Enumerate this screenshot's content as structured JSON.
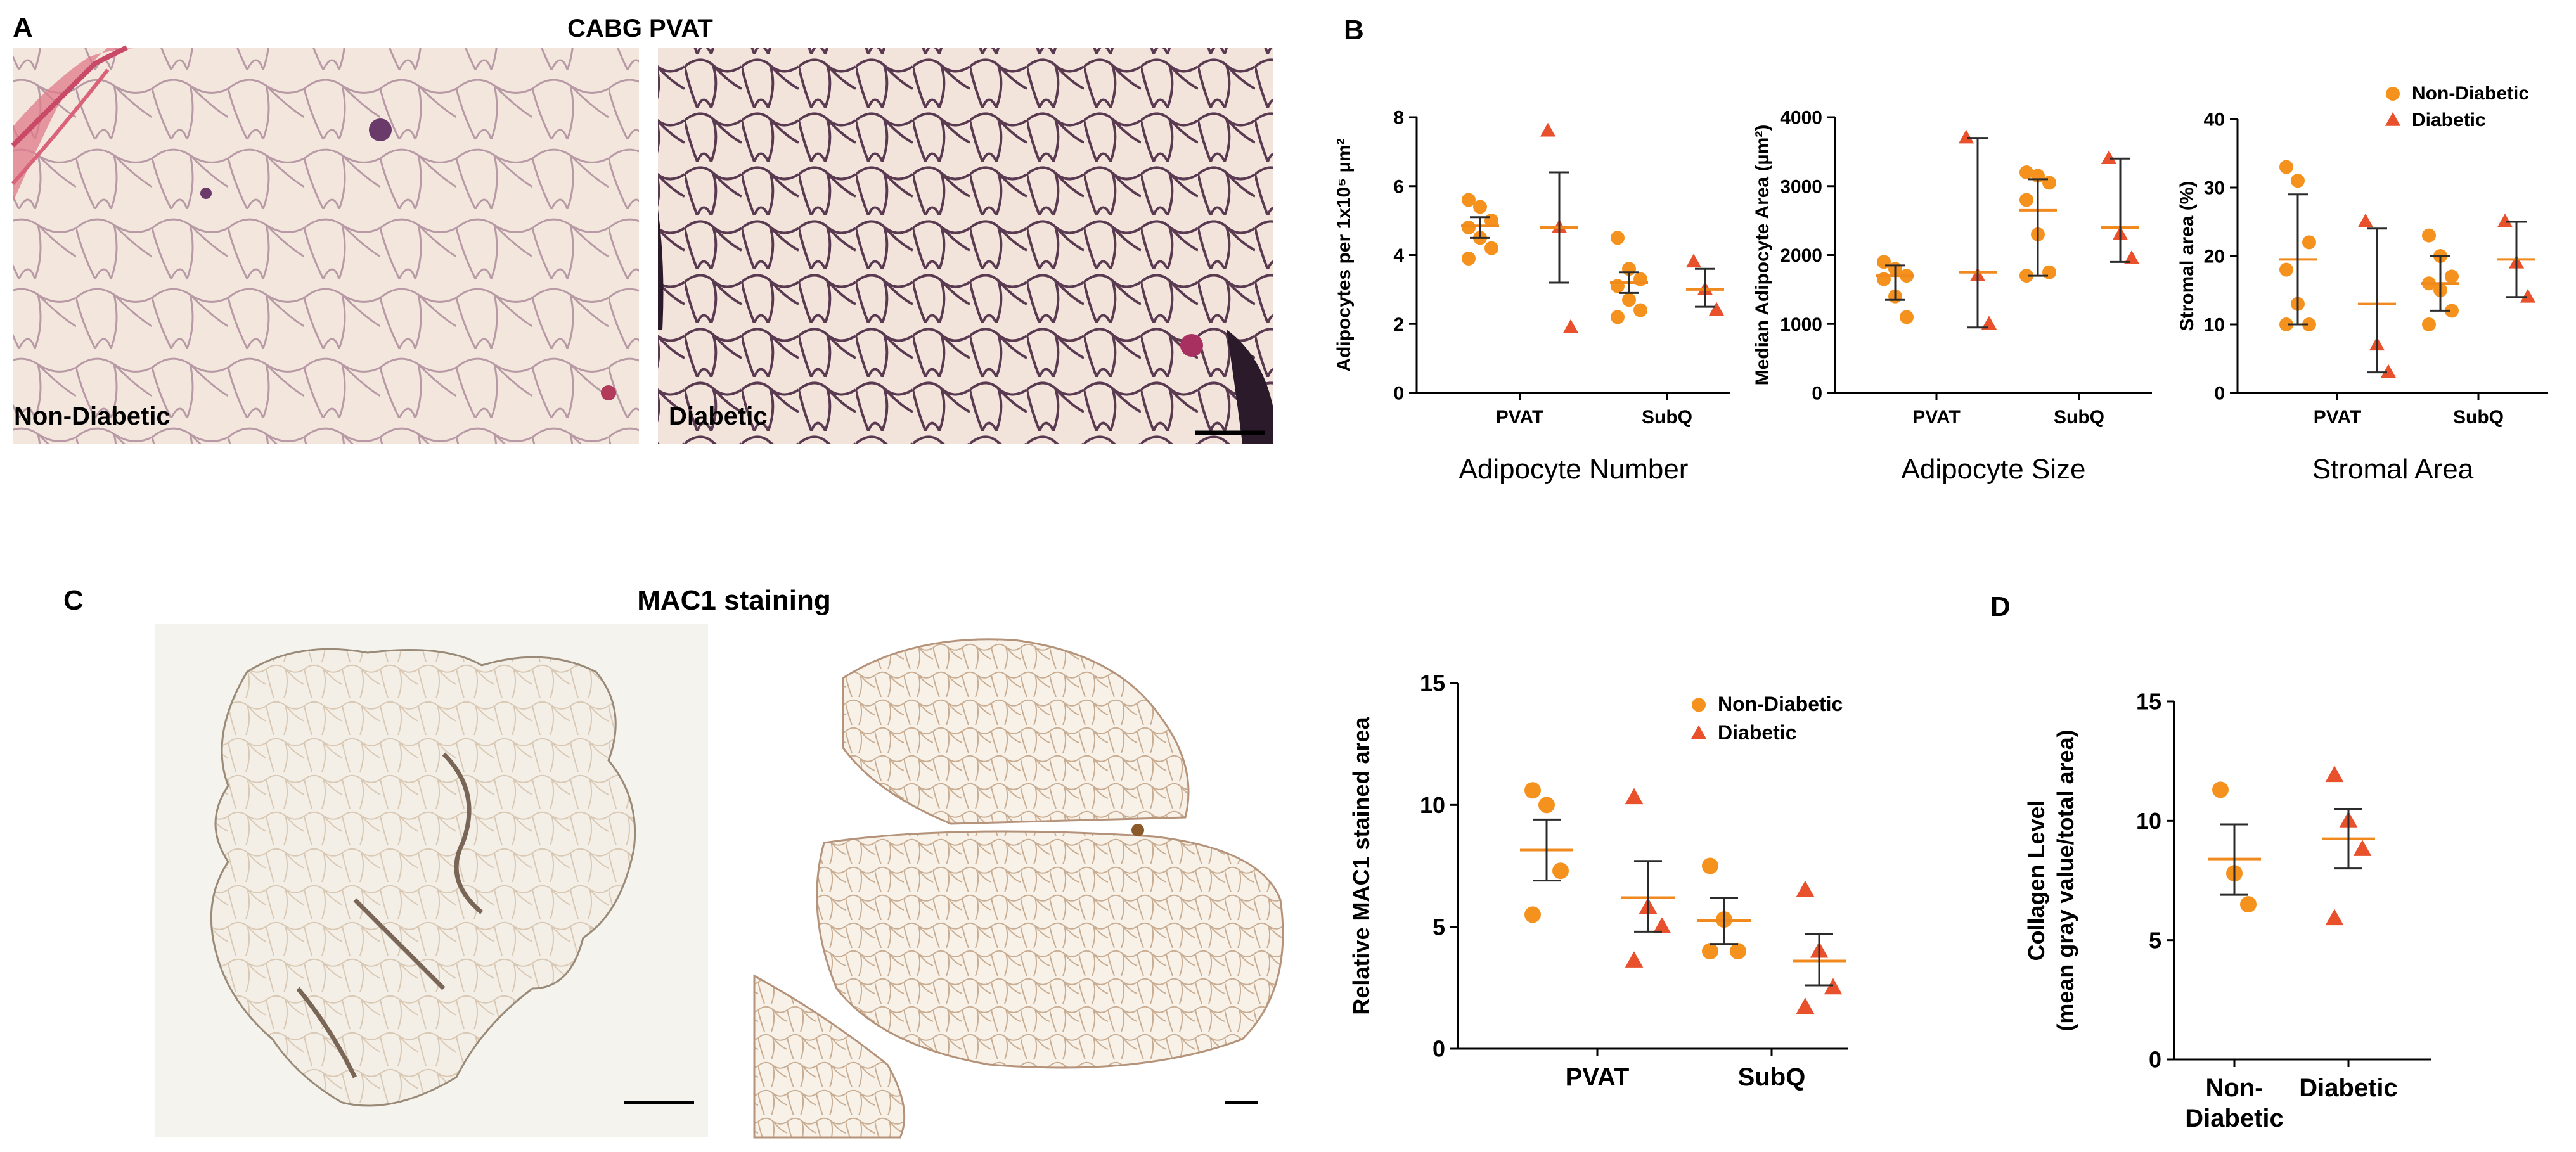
{
  "panels": {
    "A": {
      "letter": "A",
      "title": "CABG PVAT",
      "left_caption": "Non-Diabetic",
      "right_caption": "Diabetic"
    },
    "B": {
      "letter": "B"
    },
    "C": {
      "letter": "C",
      "title": "MAC1 staining"
    },
    "D": {
      "letter": "D"
    }
  },
  "colors": {
    "non_diabetic": "#F5921E",
    "diabetic": "#E8512C",
    "mean_line": "#F08A1E",
    "error_bar": "#2b2b2b",
    "he_background": "#f1e2d8",
    "mac1_background": "#f5f3ee"
  },
  "chart_data": [
    {
      "id": "adipocyte-number",
      "type": "scatter",
      "categories": [
        "PVAT",
        "SubQ"
      ],
      "ylabel": "Adipocytes per 1x10⁵ µm²",
      "xlabel": "Adipocyte Number",
      "ylim": [
        0,
        8
      ],
      "yticks": [
        0,
        2,
        4,
        6,
        8
      ],
      "legend": null,
      "series": [
        {
          "name": "Non-Diabetic",
          "marker": "circle",
          "points": [
            [
              5.6,
              5.4,
              5.0,
              4.8,
              4.5,
              4.2,
              3.9
            ],
            [
              4.5,
              3.6,
              3.3,
              3.1,
              2.7,
              2.4,
              2.2
            ]
          ],
          "mean": [
            4.85,
            3.2
          ],
          "err": [
            [
              4.5,
              5.1
            ],
            [
              2.9,
              3.5
            ]
          ]
        },
        {
          "name": "Diabetic",
          "marker": "triangle",
          "points": [
            [
              7.6,
              4.8,
              1.9
            ],
            [
              3.8,
              3.0,
              2.4
            ]
          ],
          "mean": [
            4.8,
            3.0
          ],
          "err": [
            [
              3.2,
              6.4
            ],
            [
              2.5,
              3.6
            ]
          ]
        }
      ]
    },
    {
      "id": "adipocyte-size",
      "type": "scatter",
      "categories": [
        "PVAT",
        "SubQ"
      ],
      "ylabel": "Median Adipocyte Area (µm²)",
      "xlabel": "Adipocyte Size",
      "ylim": [
        0,
        4000
      ],
      "yticks": [
        0,
        1000,
        2000,
        3000,
        4000
      ],
      "legend": null,
      "series": [
        {
          "name": "Non-Diabetic",
          "marker": "circle",
          "points": [
            [
              1900,
              1800,
              1700,
              1650,
              1400,
              1100
            ],
            [
              3200,
              3150,
              3050,
              2800,
              2300,
              1750,
              1700
            ]
          ],
          "mean": [
            1700,
            2650
          ],
          "err": [
            [
              1350,
              1850
            ],
            [
              1700,
              3100
            ]
          ]
        },
        {
          "name": "Diabetic",
          "marker": "triangle",
          "points": [
            [
              3700,
              1700,
              1000
            ],
            [
              3400,
              2300,
              1950
            ]
          ],
          "mean": [
            1750,
            2400
          ],
          "err": [
            [
              950,
              3700
            ],
            [
              1900,
              3400
            ]
          ]
        }
      ]
    },
    {
      "id": "stromal-area",
      "type": "scatter",
      "categories": [
        "PVAT",
        "SubQ"
      ],
      "ylabel": "Stromal area (%)",
      "xlabel": "Stromal Area",
      "ylim": [
        0,
        40
      ],
      "yticks": [
        0,
        10,
        20,
        30,
        40
      ],
      "legend": "top-right",
      "series": [
        {
          "name": "Non-Diabetic",
          "marker": "circle",
          "points": [
            [
              33,
              31,
              22,
              18,
              13,
              10,
              10
            ],
            [
              23,
              20,
              17,
              16,
              15,
              12,
              10
            ]
          ],
          "mean": [
            19.5,
            16
          ],
          "err": [
            [
              10,
              29
            ],
            [
              12,
              20
            ]
          ]
        },
        {
          "name": "Diabetic",
          "marker": "triangle",
          "points": [
            [
              25,
              7,
              3
            ],
            [
              25,
              19,
              14
            ]
          ],
          "mean": [
            13,
            19.5
          ],
          "err": [
            [
              3,
              24
            ],
            [
              14,
              25
            ]
          ]
        }
      ]
    },
    {
      "id": "mac1-stained-area",
      "type": "scatter",
      "categories": [
        "PVAT",
        "SubQ"
      ],
      "ylabel": "Relative MAC1 stained area",
      "xlabel": "",
      "ylim": [
        0,
        15
      ],
      "yticks": [
        0,
        5,
        10,
        15
      ],
      "legend": "top-right",
      "series": [
        {
          "name": "Non-Diabetic",
          "marker": "circle",
          "points": [
            [
              10.6,
              10.0,
              7.3,
              5.5
            ],
            [
              7.5,
              5.3,
              4.0,
              4.0
            ]
          ],
          "mean": [
            8.15,
            5.25
          ],
          "err": [
            [
              6.9,
              9.4
            ],
            [
              4.3,
              6.2
            ]
          ]
        },
        {
          "name": "Diabetic",
          "marker": "triangle",
          "points": [
            [
              10.3,
              5.8,
              5.0,
              3.6
            ],
            [
              6.5,
              4.0,
              2.5,
              1.7
            ]
          ],
          "mean": [
            6.2,
            3.6
          ],
          "err": [
            [
              4.8,
              7.7
            ],
            [
              2.6,
              4.7
            ]
          ]
        }
      ]
    },
    {
      "id": "collagen-level",
      "type": "scatter",
      "categories": [
        "Non-\nDiabetic",
        "Diabetic"
      ],
      "ylabel": "Collagen Level\n(mean gray value/total area)",
      "xlabel": "",
      "ylim": [
        0,
        15
      ],
      "yticks": [
        0,
        5,
        10,
        15
      ],
      "legend": null,
      "series": [
        {
          "name": "Non-Diabetic",
          "marker": "circle",
          "single_category": 0,
          "points": [
            [
              11.3,
              7.8,
              6.5
            ]
          ],
          "mean": [
            8.4
          ],
          "err": [
            [
              6.9,
              9.85
            ]
          ]
        },
        {
          "name": "Diabetic",
          "marker": "triangle",
          "single_category": 1,
          "points": [
            [
              11.9,
              10.0,
              8.8,
              5.9
            ]
          ],
          "mean": [
            9.25
          ],
          "err": [
            [
              8.0,
              10.5
            ]
          ]
        }
      ]
    }
  ]
}
